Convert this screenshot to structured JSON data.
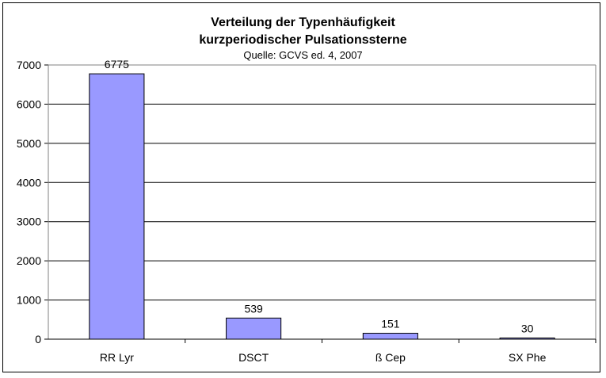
{
  "chart_data": {
    "type": "bar",
    "title": "Verteilung der Typenhäufigkeit",
    "title_line2": "kurzperiodischer Pulsationssterne",
    "subtitle": "Quelle: GCVS ed. 4, 2007",
    "categories": [
      "RR Lyr",
      "DSCT",
      "ß Cep",
      "SX Phe"
    ],
    "values": [
      6775,
      539,
      151,
      30
    ],
    "data_labels": [
      "6775",
      "539",
      "151",
      "30"
    ],
    "y_ticks": [
      "0",
      "1000",
      "2000",
      "3000",
      "4000",
      "5000",
      "6000",
      "7000"
    ],
    "ylim": [
      0,
      7000
    ],
    "grid": true,
    "legend": false,
    "bar_color": "#9999ff",
    "bar_edge_color": "#000000"
  }
}
